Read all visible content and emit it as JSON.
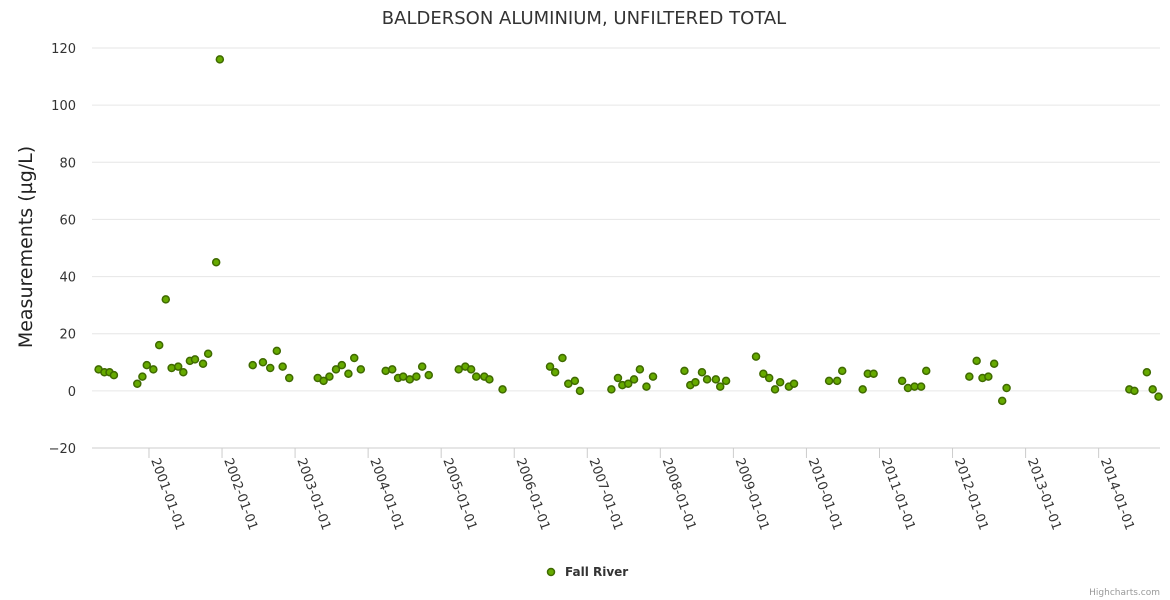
{
  "chart_data": {
    "type": "scatter",
    "title": "BALDERSON ALUMINIUM, UNFILTERED TOTAL",
    "xlabel": "",
    "ylabel": "Measurements (µg/L)",
    "ylim": [
      -20,
      120
    ],
    "yticks": [
      -20,
      0,
      20,
      40,
      60,
      80,
      100,
      120
    ],
    "x_range": [
      2000.22,
      2014.84
    ],
    "xticks": [
      {
        "label": "2001-01-01",
        "value": 2001.0
      },
      {
        "label": "2002-01-01",
        "value": 2002.0
      },
      {
        "label": "2003-01-01",
        "value": 2003.0
      },
      {
        "label": "2004-01-01",
        "value": 2004.0
      },
      {
        "label": "2005-01-01",
        "value": 2005.0
      },
      {
        "label": "2006-01-01",
        "value": 2006.0
      },
      {
        "label": "2007-01-01",
        "value": 2007.0
      },
      {
        "label": "2008-01-01",
        "value": 2008.0
      },
      {
        "label": "2009-01-01",
        "value": 2009.0
      },
      {
        "label": "2010-01-01",
        "value": 2010.0
      },
      {
        "label": "2011-01-01",
        "value": 2011.0
      },
      {
        "label": "2012-01-01",
        "value": 2012.0
      },
      {
        "label": "2013-01-01",
        "value": 2013.0
      },
      {
        "label": "2014-01-01",
        "value": 2014.0
      }
    ],
    "series": [
      {
        "name": "Fall River",
        "color": "#66aa00",
        "points": [
          [
            2000.31,
            7.5
          ],
          [
            2000.39,
            6.5
          ],
          [
            2000.46,
            6.5
          ],
          [
            2000.52,
            5.5
          ],
          [
            2000.84,
            2.5
          ],
          [
            2000.91,
            5.0
          ],
          [
            2000.97,
            9.0
          ],
          [
            2001.06,
            7.5
          ],
          [
            2001.14,
            16.0
          ],
          [
            2001.23,
            32.0
          ],
          [
            2001.31,
            8.0
          ],
          [
            2001.4,
            8.5
          ],
          [
            2001.47,
            6.5
          ],
          [
            2001.56,
            10.5
          ],
          [
            2001.63,
            11.0
          ],
          [
            2001.74,
            9.5
          ],
          [
            2001.81,
            13.0
          ],
          [
            2001.92,
            45.0
          ],
          [
            2001.97,
            116.0
          ],
          [
            2002.42,
            9.0
          ],
          [
            2002.56,
            10.0
          ],
          [
            2002.66,
            8.0
          ],
          [
            2002.75,
            14.0
          ],
          [
            2002.83,
            8.5
          ],
          [
            2002.92,
            4.5
          ],
          [
            2003.31,
            4.5
          ],
          [
            2003.39,
            3.5
          ],
          [
            2003.47,
            5.0
          ],
          [
            2003.56,
            7.5
          ],
          [
            2003.64,
            9.0
          ],
          [
            2003.73,
            6.0
          ],
          [
            2003.81,
            11.5
          ],
          [
            2003.9,
            7.5
          ],
          [
            2004.24,
            7.0
          ],
          [
            2004.33,
            7.5
          ],
          [
            2004.41,
            4.5
          ],
          [
            2004.48,
            5.0
          ],
          [
            2004.57,
            4.0
          ],
          [
            2004.66,
            5.0
          ],
          [
            2004.74,
            8.5
          ],
          [
            2004.83,
            5.5
          ],
          [
            2005.24,
            7.5
          ],
          [
            2005.33,
            8.5
          ],
          [
            2005.41,
            7.5
          ],
          [
            2005.48,
            5.0
          ],
          [
            2005.59,
            5.0
          ],
          [
            2005.66,
            4.0
          ],
          [
            2005.84,
            0.5
          ],
          [
            2006.49,
            8.5
          ],
          [
            2006.56,
            6.5
          ],
          [
            2006.66,
            11.5
          ],
          [
            2006.74,
            2.5
          ],
          [
            2006.83,
            3.5
          ],
          [
            2006.9,
            0.0
          ],
          [
            2007.33,
            0.5
          ],
          [
            2007.42,
            4.5
          ],
          [
            2007.48,
            2.0
          ],
          [
            2007.56,
            2.5
          ],
          [
            2007.64,
            4.0
          ],
          [
            2007.72,
            7.5
          ],
          [
            2007.81,
            1.5
          ],
          [
            2007.9,
            5.0
          ],
          [
            2008.33,
            7.0
          ],
          [
            2008.41,
            2.0
          ],
          [
            2008.48,
            3.0
          ],
          [
            2008.57,
            6.5
          ],
          [
            2008.64,
            4.0
          ],
          [
            2008.76,
            4.0
          ],
          [
            2008.82,
            1.5
          ],
          [
            2008.9,
            3.5
          ],
          [
            2009.31,
            12.0
          ],
          [
            2009.41,
            6.0
          ],
          [
            2009.49,
            4.5
          ],
          [
            2009.57,
            0.5
          ],
          [
            2009.64,
            3.0
          ],
          [
            2009.76,
            1.5
          ],
          [
            2009.83,
            2.5
          ],
          [
            2010.31,
            3.5
          ],
          [
            2010.42,
            3.5
          ],
          [
            2010.49,
            7.0
          ],
          [
            2010.77,
            0.5
          ],
          [
            2010.84,
            6.0
          ],
          [
            2010.92,
            6.0
          ],
          [
            2011.31,
            3.5
          ],
          [
            2011.39,
            1.0
          ],
          [
            2011.48,
            1.5
          ],
          [
            2011.57,
            1.5
          ],
          [
            2011.64,
            7.0
          ],
          [
            2012.23,
            5.0
          ],
          [
            2012.33,
            10.5
          ],
          [
            2012.41,
            4.5
          ],
          [
            2012.49,
            5.0
          ],
          [
            2012.57,
            9.5
          ],
          [
            2012.68,
            -3.5
          ],
          [
            2012.74,
            1.0
          ],
          [
            2014.42,
            0.5
          ],
          [
            2014.49,
            0.0
          ],
          [
            2014.66,
            6.5
          ],
          [
            2014.74,
            0.5
          ],
          [
            2014.82,
            -2.0
          ]
        ]
      }
    ],
    "legend": "bottom-center"
  },
  "credits": "Highcharts.com"
}
